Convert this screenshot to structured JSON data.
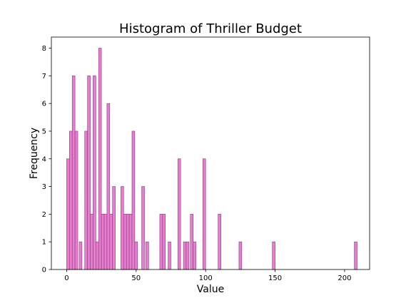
{
  "chart_data": {
    "type": "bar",
    "title": "Histogram of Thriller Budget",
    "xlabel": "Value",
    "ylabel": "Frequency",
    "xlim": [
      -11,
      218
    ],
    "ylim": [
      0,
      8.4
    ],
    "xticks": [
      0,
      50,
      100,
      150,
      200
    ],
    "yticks": [
      0,
      1,
      2,
      3,
      4,
      5,
      6,
      7,
      8
    ],
    "bin_width": 2,
    "bar_color": "#e67ecf",
    "edge_color": "#8e3a7a",
    "grid": false,
    "bins": [
      {
        "x": 0,
        "y": 4
      },
      {
        "x": 2,
        "y": 5
      },
      {
        "x": 4,
        "y": 7
      },
      {
        "x": 6,
        "y": 5
      },
      {
        "x": 9,
        "y": 1
      },
      {
        "x": 13,
        "y": 5
      },
      {
        "x": 15,
        "y": 7
      },
      {
        "x": 17,
        "y": 2
      },
      {
        "x": 19,
        "y": 7
      },
      {
        "x": 21,
        "y": 1
      },
      {
        "x": 23,
        "y": 8
      },
      {
        "x": 25,
        "y": 2
      },
      {
        "x": 27,
        "y": 2
      },
      {
        "x": 29,
        "y": 6
      },
      {
        "x": 31,
        "y": 2
      },
      {
        "x": 33,
        "y": 3
      },
      {
        "x": 39,
        "y": 3
      },
      {
        "x": 41,
        "y": 2
      },
      {
        "x": 43,
        "y": 2
      },
      {
        "x": 45,
        "y": 2
      },
      {
        "x": 47,
        "y": 5
      },
      {
        "x": 49,
        "y": 1
      },
      {
        "x": 54,
        "y": 3
      },
      {
        "x": 57,
        "y": 1
      },
      {
        "x": 67,
        "y": 2
      },
      {
        "x": 69,
        "y": 2
      },
      {
        "x": 73,
        "y": 1
      },
      {
        "x": 80,
        "y": 4
      },
      {
        "x": 84,
        "y": 1
      },
      {
        "x": 86,
        "y": 1
      },
      {
        "x": 89,
        "y": 2
      },
      {
        "x": 91,
        "y": 1
      },
      {
        "x": 98,
        "y": 4
      },
      {
        "x": 109,
        "y": 2
      },
      {
        "x": 124,
        "y": 1
      },
      {
        "x": 148,
        "y": 1
      },
      {
        "x": 207,
        "y": 1
      }
    ]
  }
}
